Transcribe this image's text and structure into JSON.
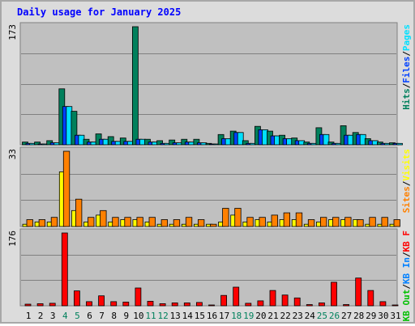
{
  "title": "Daily usage for January 2025",
  "colors": {
    "hits": "#00805c",
    "files": "#0040ff",
    "pages": "#00e0ff",
    "visits": "#ffff00",
    "sites": "#ff8000",
    "kbin": "#0080ff",
    "kbout": "#00c000",
    "kbf": "#ff0000",
    "title": "#0000ff",
    "plot_bg": "#c0c0c0",
    "grid": "#808080",
    "weekend": "#00805c",
    "day": "#000000"
  },
  "chart_data": [
    {
      "type": "bar",
      "panel": "top",
      "ylabel_max": "173",
      "ymax": 173,
      "legend": [
        "Pages",
        "/",
        "Files",
        "/",
        "Hits"
      ],
      "categories": [
        "1",
        "2",
        "3",
        "4",
        "5",
        "6",
        "7",
        "8",
        "9",
        "10",
        "11",
        "12",
        "13",
        "14",
        "15",
        "16",
        "17",
        "18",
        "19",
        "20",
        "21",
        "22",
        "23",
        "24",
        "25",
        "26",
        "27",
        "28",
        "29",
        "30",
        "31"
      ],
      "weekend_days": [
        4,
        5,
        11,
        12,
        18,
        19,
        25,
        26
      ],
      "series": [
        {
          "name": "Hits",
          "values": [
            4,
            4,
            6,
            82,
            49,
            8,
            16,
            12,
            10,
            173,
            8,
            6,
            7,
            8,
            8,
            2,
            15,
            20,
            6,
            27,
            20,
            14,
            10,
            4,
            25,
            4,
            28,
            18,
            9,
            4,
            3
          ]
        },
        {
          "name": "Files",
          "values": [
            2,
            1,
            3,
            56,
            14,
            4,
            8,
            5,
            5,
            8,
            4,
            2,
            3,
            4,
            3,
            1,
            9,
            18,
            2,
            22,
            13,
            9,
            6,
            2,
            15,
            2,
            14,
            15,
            6,
            2,
            2
          ]
        },
        {
          "name": "Pages",
          "values": [
            2,
            1,
            3,
            56,
            14,
            4,
            8,
            5,
            5,
            8,
            4,
            2,
            3,
            4,
            3,
            1,
            9,
            18,
            2,
            22,
            13,
            9,
            6,
            2,
            15,
            2,
            14,
            15,
            6,
            2,
            2
          ]
        }
      ]
    },
    {
      "type": "bar",
      "panel": "middle",
      "ylabel_max": "33",
      "ymax": 33,
      "legend": [
        "Visits",
        "/",
        "Sites"
      ],
      "series": [
        {
          "name": "Visits",
          "values": [
            1,
            2,
            2,
            24,
            7,
            2,
            5,
            2,
            3,
            3,
            2,
            1,
            1,
            1,
            1,
            1,
            2,
            5,
            2,
            3,
            2,
            3,
            3,
            1,
            2,
            3,
            3,
            3,
            1,
            1,
            1
          ]
        },
        {
          "name": "Sites",
          "values": [
            3,
            3,
            4,
            33,
            12,
            4,
            7,
            4,
            4,
            4,
            4,
            3,
            3,
            4,
            3,
            1,
            8,
            8,
            4,
            4,
            5,
            6,
            6,
            3,
            4,
            4,
            4,
            3,
            4,
            4,
            3
          ]
        }
      ]
    },
    {
      "type": "bar",
      "panel": "bottom",
      "ylabel_max": "176",
      "ymax": 176,
      "legend": [
        "KB F",
        "/",
        "KB In",
        "/",
        "KB Out"
      ],
      "series": [
        {
          "name": "KB F",
          "values": [
            4,
            5,
            6,
            176,
            36,
            10,
            24,
            10,
            9,
            43,
            11,
            5,
            7,
            7,
            8,
            2,
            25,
            45,
            6,
            12,
            37,
            26,
            19,
            3,
            7,
            57,
            3,
            67,
            37,
            10,
            2
          ]
        }
      ]
    }
  ]
}
